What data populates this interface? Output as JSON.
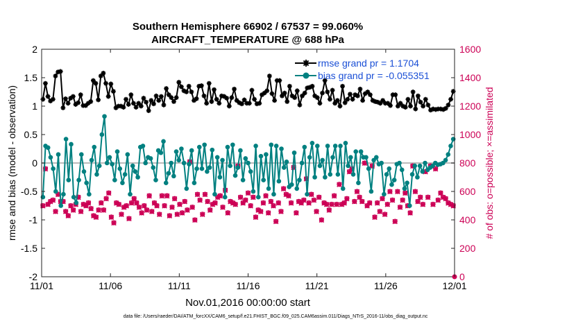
{
  "chart_data": {
    "type": "line",
    "title": "Southern Hemisphere 66902 / 67537 = 99.060%",
    "subtitle": "AIRCRAFT_TEMPERATURE @ 688 hPa",
    "xlabel": "Nov.01,2016 00:00:00 start",
    "ylabel_left": "rmse and bias (model - observation)",
    "ylabel_right": "# of obs: o=possible; ×=assimilated",
    "footnote": "data file: /Users/raeder/DAI/ATM_forcXX/CAM6_setup/f.e21.FHIST_BGC.f09_025.CAM6assim.011/Diags_NTrS_2016-11/obs_diag_output.nc",
    "x_ticks": [
      {
        "day": 0,
        "label": "11/01"
      },
      {
        "day": 5,
        "label": "11/06"
      },
      {
        "day": 10,
        "label": "11/11"
      },
      {
        "day": 15,
        "label": "11/16"
      },
      {
        "day": 20,
        "label": "11/21"
      },
      {
        "day": 25,
        "label": "11/26"
      },
      {
        "day": 30,
        "label": "12/01"
      }
    ],
    "xlim": [
      0,
      30
    ],
    "ylim_left": [
      -2,
      2
    ],
    "yticks_left": [
      "2",
      "1.5",
      "1",
      "0.5",
      "0",
      "-0.5",
      "-1",
      "-1.5",
      "-2"
    ],
    "ylim_right": [
      0,
      1600
    ],
    "yticks_right": [
      "1600",
      "1400",
      "1200",
      "1000",
      "800",
      "600",
      "400",
      "200",
      "0"
    ],
    "zero_line": 0,
    "legend": [
      {
        "label": "rmse grand pr = 1.1704",
        "color": "#000000"
      },
      {
        "label": "bias grand pr = -0.055351",
        "color": "#008080"
      }
    ],
    "colors": {
      "rmse": "#000000",
      "bias": "#008080",
      "obs": "#cc0055",
      "zero": "#bbbbbb"
    },
    "series": [
      {
        "name": "rmse",
        "axis": "left",
        "marker": "asterisk",
        "values": [
          1.12,
          1.4,
          1.17,
          1.09,
          1.12,
          1.53,
          1.6,
          1.61,
          0.97,
          1.13,
          1.05,
          1.14,
          1.17,
          1.03,
          1.06,
          1.2,
          1.01,
          1.01,
          1.05,
          1.08,
          1.45,
          1.4,
          1.11,
          1.53,
          1.58,
          1.4,
          1.17,
          1.39,
          1.26,
          0.97,
          1.0,
          1.0,
          0.98,
          1.12,
          1.03,
          1.2,
          1.05,
          0.98,
          1.05,
          1.0,
          1.14,
          1.07,
          0.92,
          1.1,
          1.04,
          1.18,
          1.1,
          1.17,
          1.02,
          1.31,
          1.2,
          1.15,
          1.08,
          1.15,
          1.42,
          1.34,
          1.27,
          1.25,
          1.35,
          1.25,
          1.1,
          1.13,
          1.35,
          1.36,
          1.18,
          1.05,
          1.4,
          1.08,
          1.29,
          1.12,
          1.05,
          1.18,
          1.17,
          1.14,
          1.0,
          1.15,
          1.3,
          1.1,
          1.06,
          1.04,
          1.11,
          1.05,
          1.05,
          1.28,
          1.12,
          1.04,
          1.05,
          1.2,
          1.23,
          1.27,
          1.53,
          1.22,
          1.1,
          1.45,
          1.45,
          1.18,
          1.23,
          1.08,
          1.35,
          1.18,
          1.15,
          1.27,
          1.02,
          1.18,
          1.23,
          1.32,
          1.33,
          1.35,
          1.18,
          1.15,
          1.05,
          1.23,
          1.45,
          1.25,
          1.12,
          1.28,
          1.05,
          1.1,
          1.0,
          1.35,
          1.06,
          1.12,
          1.21,
          1.12,
          1.2,
          1.18,
          1.3,
          1.1,
          1.22,
          1.25,
          1.2,
          1.1,
          1.08,
          1.07,
          1.05,
          1.1,
          1.05,
          1.05,
          1.01,
          1.2,
          1.2,
          1.0,
          1.05,
          1.0,
          0.98,
          1.12,
          1.0,
          1.25,
          0.95,
          1.18,
          1.07,
          1.0,
          1.12,
          1.02,
          0.93,
          0.95,
          0.94,
          0.95,
          0.95,
          0.94,
          0.96,
          1.02,
          1.12,
          1.26
        ]
      },
      {
        "name": "bias",
        "axis": "left",
        "marker": "dot",
        "values": [
          -0.6,
          0.3,
          0.27,
          0.1,
          -0.1,
          -0.5,
          0.15,
          -0.75,
          -0.55,
          0.42,
          -0.3,
          0.33,
          -0.6,
          -0.7,
          -0.3,
          0.15,
          -0.15,
          -0.35,
          -0.55,
          0.05,
          0.28,
          -0.2,
          -0.05,
          0.5,
          0.82,
          0.0,
          0.1,
          -0.02,
          -0.3,
          0.2,
          -0.1,
          -0.35,
          -0.2,
          0.15,
          -0.55,
          -0.05,
          -0.15,
          -0.25,
          0.28,
          0.3,
          0.0,
          0.1,
          0.08,
          -0.08,
          -0.3,
          0.22,
          0.18,
          0.38,
          -0.35,
          -0.18,
          0.0,
          -0.23,
          0.2,
          0.05,
          0.25,
          0.0,
          -0.45,
          -0.02,
          0.22,
          -0.35,
          -0.1,
          0.28,
          -0.1,
          0.32,
          -0.15,
          -0.08,
          0.23,
          -0.55,
          0.1,
          -0.25,
          0.05,
          -0.6,
          0.28,
          -0.05,
          0.32,
          -0.22,
          -0.08,
          0.22,
          -0.3,
          0.08,
          0.0,
          -0.15,
          -0.5,
          0.3,
          -0.6,
          0.12,
          -0.3,
          0.15,
          -0.45,
          0.32,
          -0.55,
          0.3,
          -0.32,
          0.25,
          -0.08,
          0.02,
          -0.42,
          -0.38,
          0.18,
          -0.45,
          -0.3,
          0.0,
          0.28,
          -0.55,
          0.1,
          0.35,
          -0.25,
          0.3,
          -0.05,
          0.05,
          -0.25,
          0.3,
          -0.2,
          0.1,
          0.3,
          -0.2,
          0.3,
          -0.45,
          0.35,
          -0.05,
          0.1,
          -0.2,
          0.2,
          -0.35,
          0.2,
          0.1,
          0.1,
          -0.1,
          -0.5,
          0.05,
          0.1,
          -0.02,
          0.0,
          -0.55,
          -0.2,
          -0.1,
          -0.38,
          -0.3,
          -0.02,
          0.0,
          -0.12,
          -0.45,
          -0.35,
          -0.75,
          -0.2,
          -0.05,
          -0.25,
          -0.05,
          -0.15,
          0.0,
          -0.12,
          -0.08,
          -0.05,
          0.0,
          -0.03,
          -0.02,
          0.0,
          0.05,
          0.15,
          0.3,
          0.42
        ]
      },
      {
        "name": "obs_possible",
        "axis": "right",
        "marker": "circle",
        "values": [
          500,
          760,
          510,
          530,
          540,
          460,
          580,
          530,
          530,
          460,
          430,
          500,
          470,
          510,
          560,
          460,
          510,
          500,
          520,
          480,
          430,
          420,
          470,
          520,
          470,
          550,
          590,
          420,
          380,
          520,
          510,
          440,
          490,
          500,
          410,
          520,
          550,
          520,
          490,
          450,
          500,
          470,
          570,
          460,
          520,
          500,
          440,
          570,
          500,
          570,
          430,
          490,
          550,
          440,
          510,
          450,
          530,
          470,
          810,
          490,
          400,
          580,
          540,
          440,
          580,
          530,
          470,
          510,
          520,
          560,
          570,
          490,
          610,
          450,
          530,
          520,
          510,
          780,
          560,
          520,
          540,
          590,
          500,
          560,
          420,
          470,
          460,
          520,
          570,
          450,
          530,
          500,
          390,
          520,
          460,
          620,
          580,
          570,
          520,
          770,
          450,
          530,
          520,
          540,
          690,
          520,
          580,
          540,
          460,
          560,
          400,
          520,
          510,
          470,
          510,
          570,
          510,
          650,
          510,
          520,
          550,
          740,
          760,
          530,
          600,
          560,
          530,
          800,
          500,
          520,
          780,
          420,
          520,
          460,
          550,
          440,
          510,
          600,
          540,
          390,
          600,
          490,
          540,
          590,
          500,
          450,
          780,
          600,
          530,
          560,
          510,
          740,
          560,
          780,
          510,
          760,
          540,
          590,
          560,
          550,
          520,
          510,
          500
        ]
      },
      {
        "name": "obs_assimilated",
        "axis": "right",
        "marker": "cross",
        "values": [
          498,
          758,
          508,
          528,
          538,
          458,
          578,
          528,
          528,
          458,
          428,
          498,
          468,
          508,
          558,
          458,
          508,
          498,
          518,
          478,
          428,
          418,
          468,
          518,
          468,
          548,
          588,
          418,
          378,
          518,
          508,
          438,
          488,
          498,
          408,
          518,
          548,
          518,
          488,
          448,
          498,
          468,
          568,
          458,
          518,
          498,
          438,
          568,
          498,
          568,
          428,
          488,
          548,
          438,
          508,
          448,
          528,
          468,
          808,
          488,
          398,
          578,
          538,
          438,
          578,
          528,
          468,
          508,
          518,
          558,
          568,
          488,
          608,
          448,
          528,
          518,
          508,
          778,
          558,
          518,
          538,
          588,
          498,
          558,
          418,
          468,
          458,
          518,
          568,
          448,
          528,
          498,
          388,
          518,
          458,
          618,
          578,
          568,
          518,
          768,
          448,
          528,
          518,
          538,
          688,
          518,
          578,
          538,
          458,
          558,
          398,
          518,
          508,
          468,
          508,
          568,
          508,
          648,
          508,
          518,
          548,
          738,
          758,
          528,
          598,
          558,
          528,
          798,
          498,
          518,
          778,
          418,
          518,
          458,
          548,
          438,
          508,
          598,
          538,
          388,
          598,
          488,
          538,
          588,
          498,
          448,
          778,
          598,
          528,
          558,
          508,
          738,
          558,
          778,
          508,
          758,
          538,
          588,
          558,
          548,
          518,
          508,
          498
        ]
      }
    ]
  }
}
